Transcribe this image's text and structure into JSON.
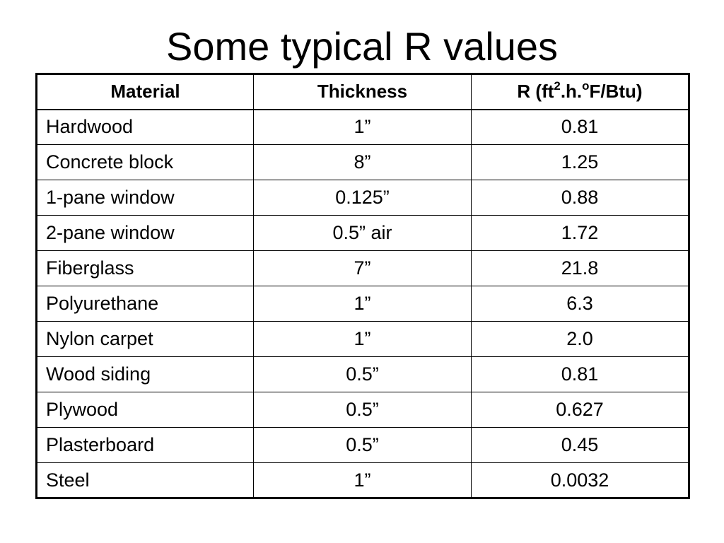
{
  "slide": {
    "title": "Some typical R values"
  },
  "table": {
    "headers": {
      "material": "Material",
      "thickness": "Thickness",
      "r_prefix": "R (ft",
      "r_sup1": "2",
      "r_mid": ".h.",
      "r_sup2": "o",
      "r_suffix": "F/Btu)"
    },
    "rows": [
      {
        "material": "Hardwood",
        "thickness": "1”",
        "r": "0.81"
      },
      {
        "material": "Concrete block",
        "thickness": "8”",
        "r": "1.25"
      },
      {
        "material": "1-pane window",
        "thickness": "0.125”",
        "r": "0.88"
      },
      {
        "material": "2-pane window",
        "thickness": "0.5” air",
        "r": "1.72"
      },
      {
        "material": "Fiberglass",
        "thickness": "7”",
        "r": "21.8"
      },
      {
        "material": "Polyurethane",
        "thickness": "1”",
        "r": "6.3"
      },
      {
        "material": "Nylon carpet",
        "thickness": "1”",
        "r": "2.0"
      },
      {
        "material": "Wood siding",
        "thickness": "0.5”",
        "r": "0.81"
      },
      {
        "material": "Plywood",
        "thickness": "0.5”",
        "r": "0.627"
      },
      {
        "material": "Plasterboard",
        "thickness": "0.5”",
        "r": "0.45"
      },
      {
        "material": "Steel",
        "thickness": "1”",
        "r": "0.0032"
      }
    ]
  }
}
